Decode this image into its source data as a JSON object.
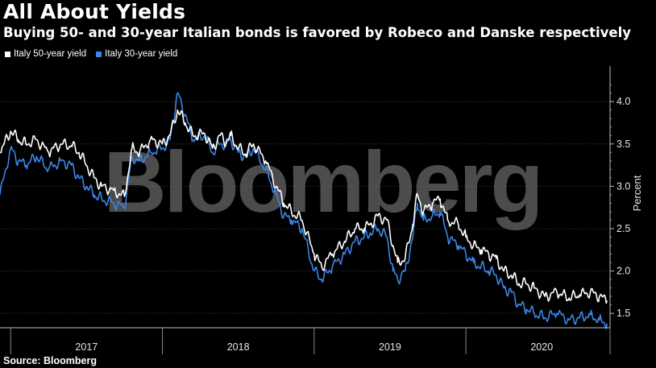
{
  "title": "All About Yields",
  "subtitle": "Buying 50- and 30-year Italian bonds is favored by Robeco and Danske respectively",
  "source": "Source: Bloomberg",
  "watermark": "Bloomberg",
  "colors": {
    "background": "#000000",
    "series_50y": "#ffffff",
    "series_30y": "#3a86e6",
    "grid": "#3a3a3a"
  },
  "chart_data": {
    "type": "line",
    "ylabel": "Percent",
    "ylim": [
      1.33,
      4.42
    ],
    "yticks": [
      1.5,
      2.0,
      2.5,
      3.0,
      3.5,
      4.0
    ],
    "ytick_labels": [
      "1.5",
      "2.0",
      "2.5",
      "3.0",
      "3.5",
      "4.0"
    ],
    "xlim": [
      2016.93,
      2020.95
    ],
    "x_categories": [
      "2017",
      "2018",
      "2019",
      "2020"
    ],
    "grid": "horizontal",
    "legend_placement": "top-left",
    "series": [
      {
        "name": "Italy 50-year yield",
        "x": [
          2016.93,
          2017.0,
          2017.05,
          2017.1,
          2017.17,
          2017.25,
          2017.33,
          2017.4,
          2017.45,
          2017.5,
          2017.55,
          2017.6,
          2017.68,
          2017.75,
          2017.8,
          2017.85,
          2017.92,
          2018.0,
          2018.05,
          2018.1,
          2018.15,
          2018.2,
          2018.28,
          2018.33,
          2018.38,
          2018.42,
          2018.45,
          2018.5,
          2018.55,
          2018.6,
          2018.68,
          2018.75,
          2018.8,
          2018.85,
          2018.92,
          2019.0,
          2019.05,
          2019.12,
          2019.2,
          2019.27,
          2019.33,
          2019.37,
          2019.42,
          2019.48,
          2019.52,
          2019.55,
          2019.6,
          2019.65,
          2019.68,
          2019.72,
          2019.78,
          2019.83,
          2019.88,
          2019.95,
          2020.0,
          2020.05,
          2020.1,
          2020.15,
          2020.2,
          2020.25,
          2020.3,
          2020.35,
          2020.4,
          2020.45,
          2020.52,
          2020.6,
          2020.68,
          2020.75,
          2020.82,
          2020.88,
          2020.93
        ],
        "values": [
          3.4,
          3.65,
          3.55,
          3.5,
          3.55,
          3.4,
          3.5,
          3.48,
          3.4,
          3.25,
          3.1,
          3.0,
          2.95,
          2.88,
          3.45,
          3.4,
          3.55,
          3.5,
          3.6,
          3.9,
          3.75,
          3.6,
          3.62,
          3.45,
          3.6,
          3.52,
          3.6,
          3.45,
          3.38,
          3.5,
          3.3,
          3.0,
          2.8,
          2.7,
          2.6,
          2.2,
          2.05,
          2.2,
          2.35,
          2.5,
          2.5,
          2.55,
          2.65,
          2.6,
          2.3,
          2.1,
          2.15,
          2.55,
          2.9,
          2.7,
          2.8,
          2.85,
          2.6,
          2.55,
          2.4,
          2.3,
          2.25,
          2.2,
          2.15,
          2.0,
          1.95,
          1.85,
          1.85,
          1.8,
          1.7,
          1.75,
          1.68,
          1.72,
          1.75,
          1.7,
          1.65
        ]
      },
      {
        "name": "Italy 30-year yield",
        "x": [
          2016.93,
          2017.0,
          2017.05,
          2017.1,
          2017.17,
          2017.25,
          2017.33,
          2017.4,
          2017.45,
          2017.5,
          2017.55,
          2017.6,
          2017.68,
          2017.75,
          2017.8,
          2017.85,
          2017.92,
          2018.0,
          2018.05,
          2018.1,
          2018.15,
          2018.2,
          2018.28,
          2018.33,
          2018.38,
          2018.42,
          2018.45,
          2018.5,
          2018.55,
          2018.6,
          2018.68,
          2018.75,
          2018.8,
          2018.85,
          2018.92,
          2019.0,
          2019.05,
          2019.12,
          2019.2,
          2019.27,
          2019.33,
          2019.37,
          2019.42,
          2019.48,
          2019.52,
          2019.55,
          2019.6,
          2019.65,
          2019.68,
          2019.72,
          2019.78,
          2019.83,
          2019.88,
          2019.95,
          2020.0,
          2020.05,
          2020.1,
          2020.15,
          2020.2,
          2020.25,
          2020.3,
          2020.35,
          2020.4,
          2020.45,
          2020.52,
          2020.6,
          2020.68,
          2020.75,
          2020.82,
          2020.88,
          2020.93
        ],
        "values": [
          2.9,
          3.45,
          3.3,
          3.25,
          3.35,
          3.2,
          3.3,
          3.25,
          3.1,
          3.0,
          2.9,
          2.85,
          2.8,
          2.75,
          3.35,
          3.3,
          3.4,
          3.45,
          3.55,
          4.1,
          3.85,
          3.55,
          3.6,
          3.4,
          3.5,
          3.5,
          3.55,
          3.4,
          3.35,
          3.45,
          3.2,
          2.9,
          2.65,
          2.6,
          2.5,
          2.0,
          1.9,
          2.05,
          2.2,
          2.35,
          2.4,
          2.45,
          2.5,
          2.4,
          2.0,
          1.9,
          2.0,
          2.4,
          2.8,
          2.6,
          2.65,
          2.7,
          2.4,
          2.3,
          2.2,
          2.1,
          2.05,
          2.0,
          1.95,
          1.8,
          1.75,
          1.6,
          1.55,
          1.5,
          1.45,
          1.5,
          1.42,
          1.45,
          1.48,
          1.42,
          1.38
        ]
      }
    ]
  }
}
